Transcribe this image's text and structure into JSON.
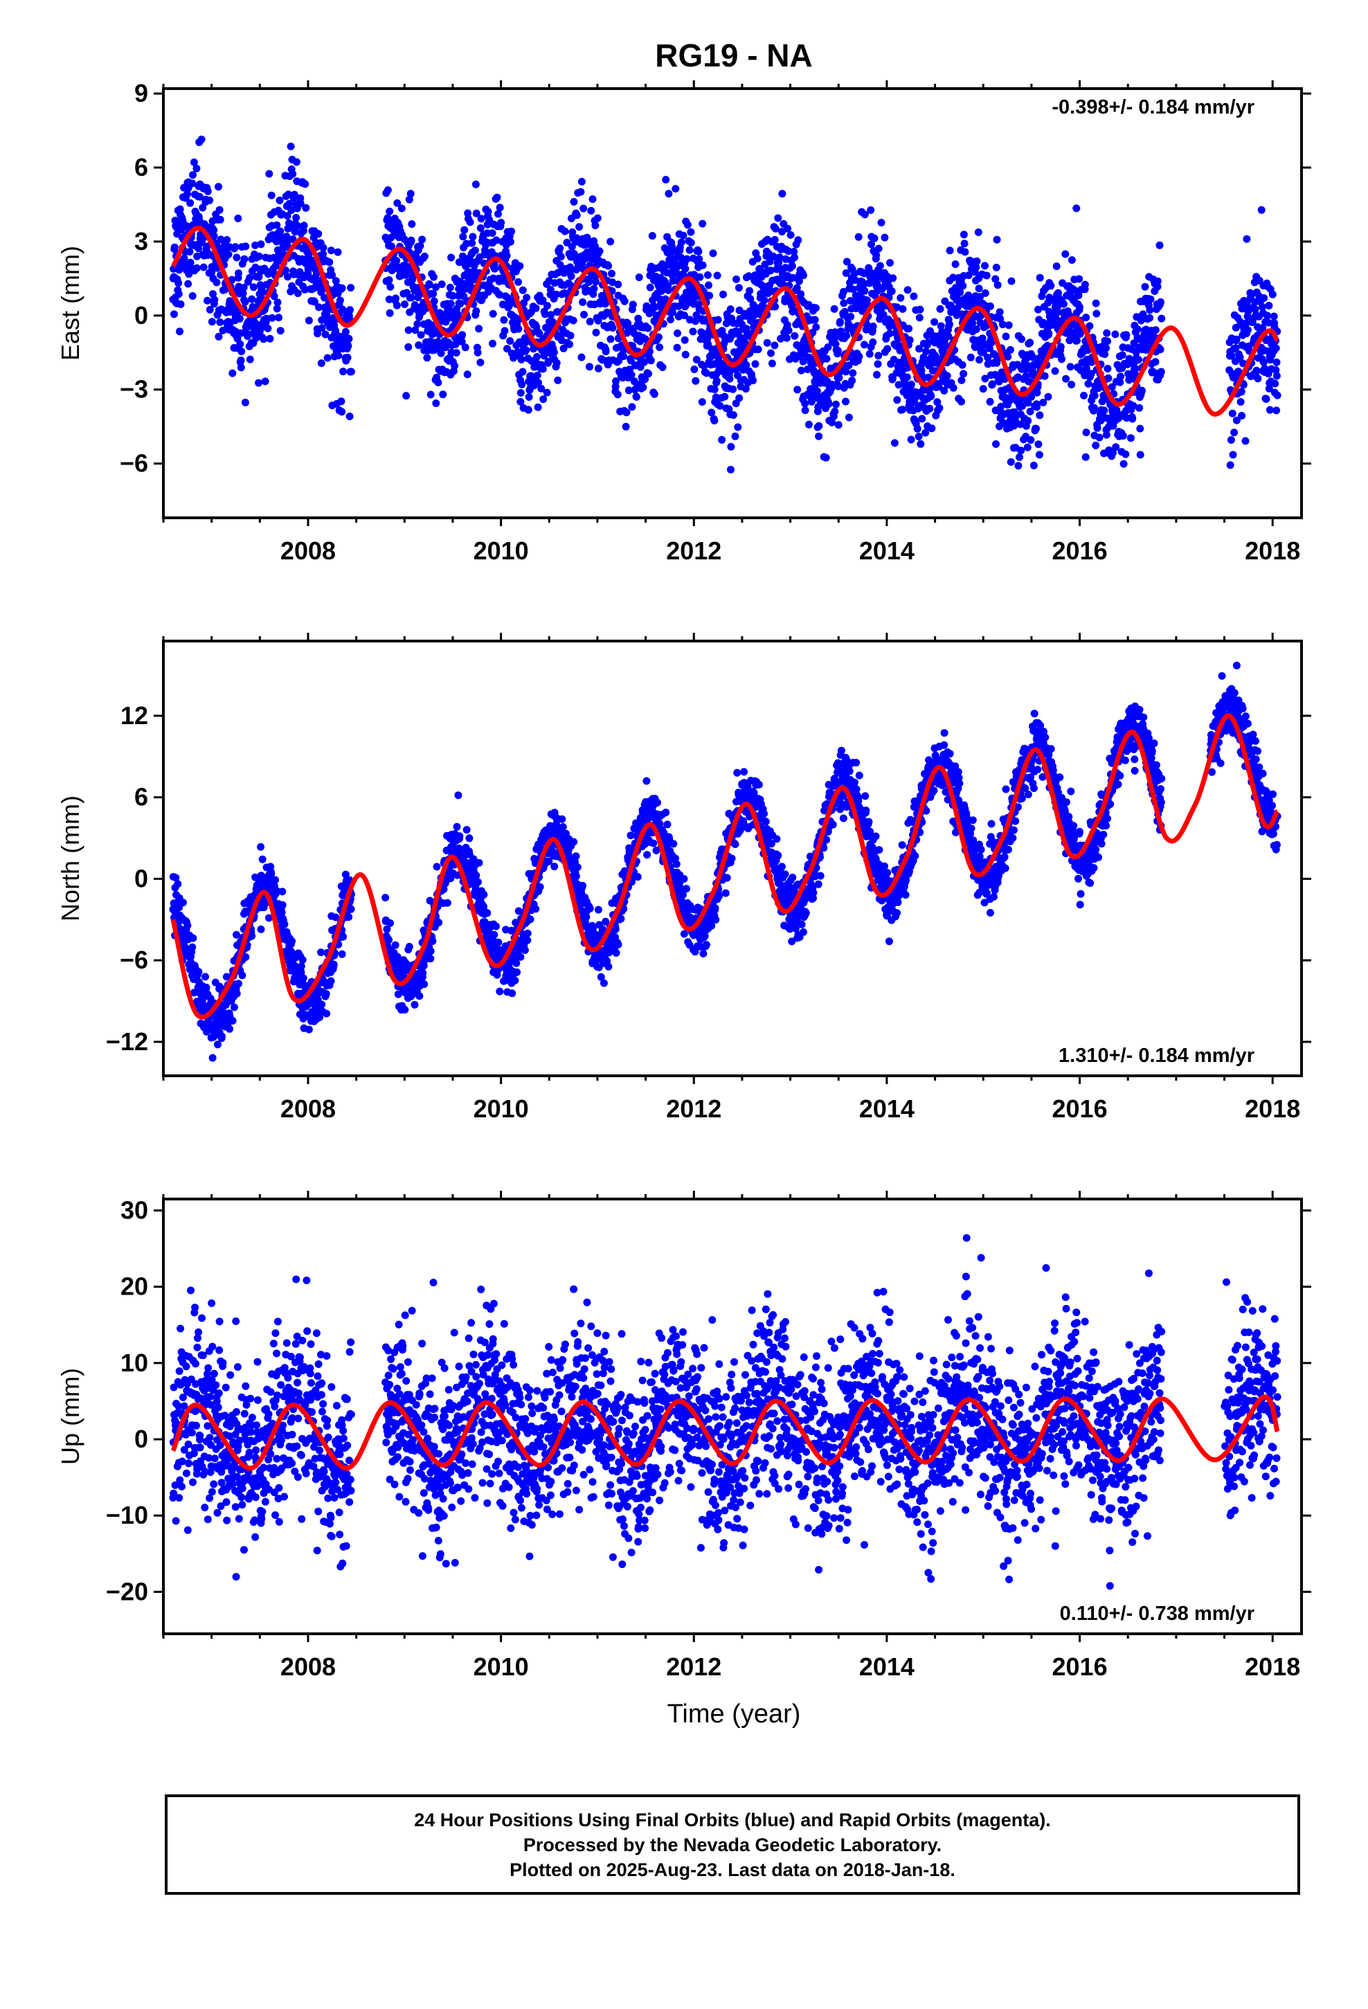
{
  "title": "RG19 - NA",
  "xlabel": "Time (year)",
  "colors": {
    "final_orbits": "#0000ff",
    "model_fit": "#ff0000",
    "frame": "#000000"
  },
  "footer": {
    "line1": "24 Hour Positions Using Final Orbits (blue) and Rapid Orbits (magenta).",
    "line2": "Processed by the Nevada Geodetic Laboratory.",
    "line3": "Plotted on 2025-Aug-23. Last data on 2018-Jan-18."
  },
  "chart_data": [
    {
      "type": "scatter",
      "ylabel": "East (mm)",
      "velocity": "-0.398+/- 0.184 mm/yr",
      "velocity_position": "top-right",
      "xlim": [
        2006.5,
        2018.3
      ],
      "ylim": [
        -8.2,
        9.2
      ],
      "xticks": [
        "2008",
        "2010",
        "2012",
        "2014",
        "2016",
        "2018"
      ],
      "yticks": [
        "9",
        "6",
        "3",
        "0",
        "-3",
        "-6"
      ],
      "series": [
        {
          "kind": "daily positions",
          "x_start": 2006.6,
          "x_end": 2018.05,
          "gaps": [
            [
              2008.45,
              2008.8
            ],
            [
              2016.85,
              2017.55
            ]
          ],
          "linear_start": 2.0,
          "linear_rate": -0.398,
          "annual_amplitude": 1.9,
          "annual_peak": 0.85,
          "scatter_sd": 1.3
        },
        {
          "kind": "model fit",
          "curve": [
            [
              2006.6,
              2.0
            ],
            [
              2006.9,
              3.5
            ],
            [
              2007.4,
              0.0
            ],
            [
              2007.95,
              3.1
            ],
            [
              2008.4,
              -0.4
            ],
            [
              2008.95,
              2.7
            ],
            [
              2009.45,
              -0.8
            ],
            [
              2009.95,
              2.3
            ],
            [
              2010.4,
              -1.2
            ],
            [
              2010.95,
              1.9
            ],
            [
              2011.4,
              -1.6
            ],
            [
              2011.95,
              1.5
            ],
            [
              2012.4,
              -2.0
            ],
            [
              2012.95,
              1.1
            ],
            [
              2013.4,
              -2.4
            ],
            [
              2013.95,
              0.7
            ],
            [
              2014.4,
              -2.8
            ],
            [
              2014.95,
              0.3
            ],
            [
              2015.4,
              -3.2
            ],
            [
              2015.95,
              -0.1
            ],
            [
              2016.4,
              -3.6
            ],
            [
              2016.95,
              -0.5
            ],
            [
              2017.4,
              -4.0
            ],
            [
              2017.9,
              -0.8
            ],
            [
              2018.05,
              -1.0
            ]
          ]
        }
      ]
    },
    {
      "type": "scatter",
      "ylabel": "North (mm)",
      "velocity": "1.310+/- 0.184 mm/yr",
      "velocity_position": "bottom-right",
      "xlim": [
        2006.5,
        2018.3
      ],
      "ylim": [
        -14.5,
        17.5
      ],
      "xticks": [
        "2008",
        "2010",
        "2012",
        "2014",
        "2016",
        "2018"
      ],
      "yticks": [
        "12",
        "6",
        "0",
        "-6",
        "-12"
      ],
      "series": [
        {
          "kind": "daily positions",
          "x_start": 2006.6,
          "x_end": 2018.05,
          "gaps": [
            [
              2008.45,
              2008.8
            ],
            [
              2016.85,
              2017.35
            ]
          ],
          "linear_start": -6.5,
          "linear_rate": 1.31,
          "annual_amplitude": 4.5,
          "annual_peak": 0.55,
          "scatter_sd": 1.0
        },
        {
          "kind": "model fit",
          "curve": [
            [
              2006.6,
              -3.0
            ],
            [
              2006.85,
              -10.0
            ],
            [
              2007.2,
              -7.5
            ],
            [
              2007.55,
              -1.0
            ],
            [
              2007.85,
              -8.8
            ],
            [
              2008.2,
              -6.0
            ],
            [
              2008.55,
              0.3
            ],
            [
              2008.9,
              -7.5
            ],
            [
              2009.2,
              -5.0
            ],
            [
              2009.5,
              1.6
            ],
            [
              2009.9,
              -6.2
            ],
            [
              2010.2,
              -3.5
            ],
            [
              2010.55,
              2.9
            ],
            [
              2010.9,
              -5.0
            ],
            [
              2011.2,
              -2.5
            ],
            [
              2011.55,
              4.0
            ],
            [
              2011.9,
              -3.5
            ],
            [
              2012.2,
              -1.0
            ],
            [
              2012.55,
              5.5
            ],
            [
              2012.9,
              -2.2
            ],
            [
              2013.2,
              0.5
            ],
            [
              2013.55,
              6.7
            ],
            [
              2013.9,
              -1.0
            ],
            [
              2014.2,
              1.5
            ],
            [
              2014.55,
              8.2
            ],
            [
              2014.9,
              0.5
            ],
            [
              2015.2,
              3.0
            ],
            [
              2015.55,
              9.5
            ],
            [
              2015.9,
              1.8
            ],
            [
              2016.2,
              4.5
            ],
            [
              2016.55,
              10.8
            ],
            [
              2016.9,
              3.0
            ],
            [
              2017.2,
              5.5
            ],
            [
              2017.55,
              12.0
            ],
            [
              2017.9,
              4.2
            ],
            [
              2018.05,
              5.0
            ]
          ]
        }
      ]
    },
    {
      "type": "scatter",
      "ylabel": "Up (mm)",
      "velocity": "0.110+/- 0.738 mm/yr",
      "velocity_position": "bottom-right",
      "xlim": [
        2006.5,
        2018.3
      ],
      "ylim": [
        -25.5,
        31.5
      ],
      "xticks": [
        "2008",
        "2010",
        "2012",
        "2014",
        "2016",
        "2018"
      ],
      "yticks": [
        "30",
        "20",
        "10",
        "0",
        "-10",
        "-20"
      ],
      "series": [
        {
          "kind": "daily positions",
          "x_start": 2006.6,
          "x_end": 2018.05,
          "gaps": [
            [
              2008.45,
              2008.8
            ],
            [
              2016.85,
              2017.5
            ]
          ],
          "linear_start": 0.5,
          "linear_rate": 0.11,
          "annual_amplitude": 4.0,
          "annual_peak": 0.85,
          "scatter_sd": 5.5
        },
        {
          "kind": "model fit",
          "curve": [
            [
              2006.6,
              -1.5
            ],
            [
              2006.85,
              4.5
            ],
            [
              2007.4,
              -3.8
            ],
            [
              2007.85,
              4.5
            ],
            [
              2008.4,
              -3.8
            ],
            [
              2008.85,
              4.8
            ],
            [
              2009.4,
              -3.4
            ],
            [
              2009.85,
              4.8
            ],
            [
              2010.4,
              -3.4
            ],
            [
              2010.85,
              4.9
            ],
            [
              2011.4,
              -3.3
            ],
            [
              2011.85,
              5.0
            ],
            [
              2012.4,
              -3.2
            ],
            [
              2012.85,
              5.0
            ],
            [
              2013.4,
              -3.1
            ],
            [
              2013.85,
              5.1
            ],
            [
              2014.4,
              -3.0
            ],
            [
              2014.85,
              5.2
            ],
            [
              2015.4,
              -2.9
            ],
            [
              2015.85,
              5.3
            ],
            [
              2016.4,
              -2.8
            ],
            [
              2016.85,
              5.3
            ],
            [
              2017.4,
              -2.7
            ],
            [
              2017.9,
              5.5
            ],
            [
              2018.05,
              1.0
            ]
          ]
        }
      ]
    }
  ]
}
